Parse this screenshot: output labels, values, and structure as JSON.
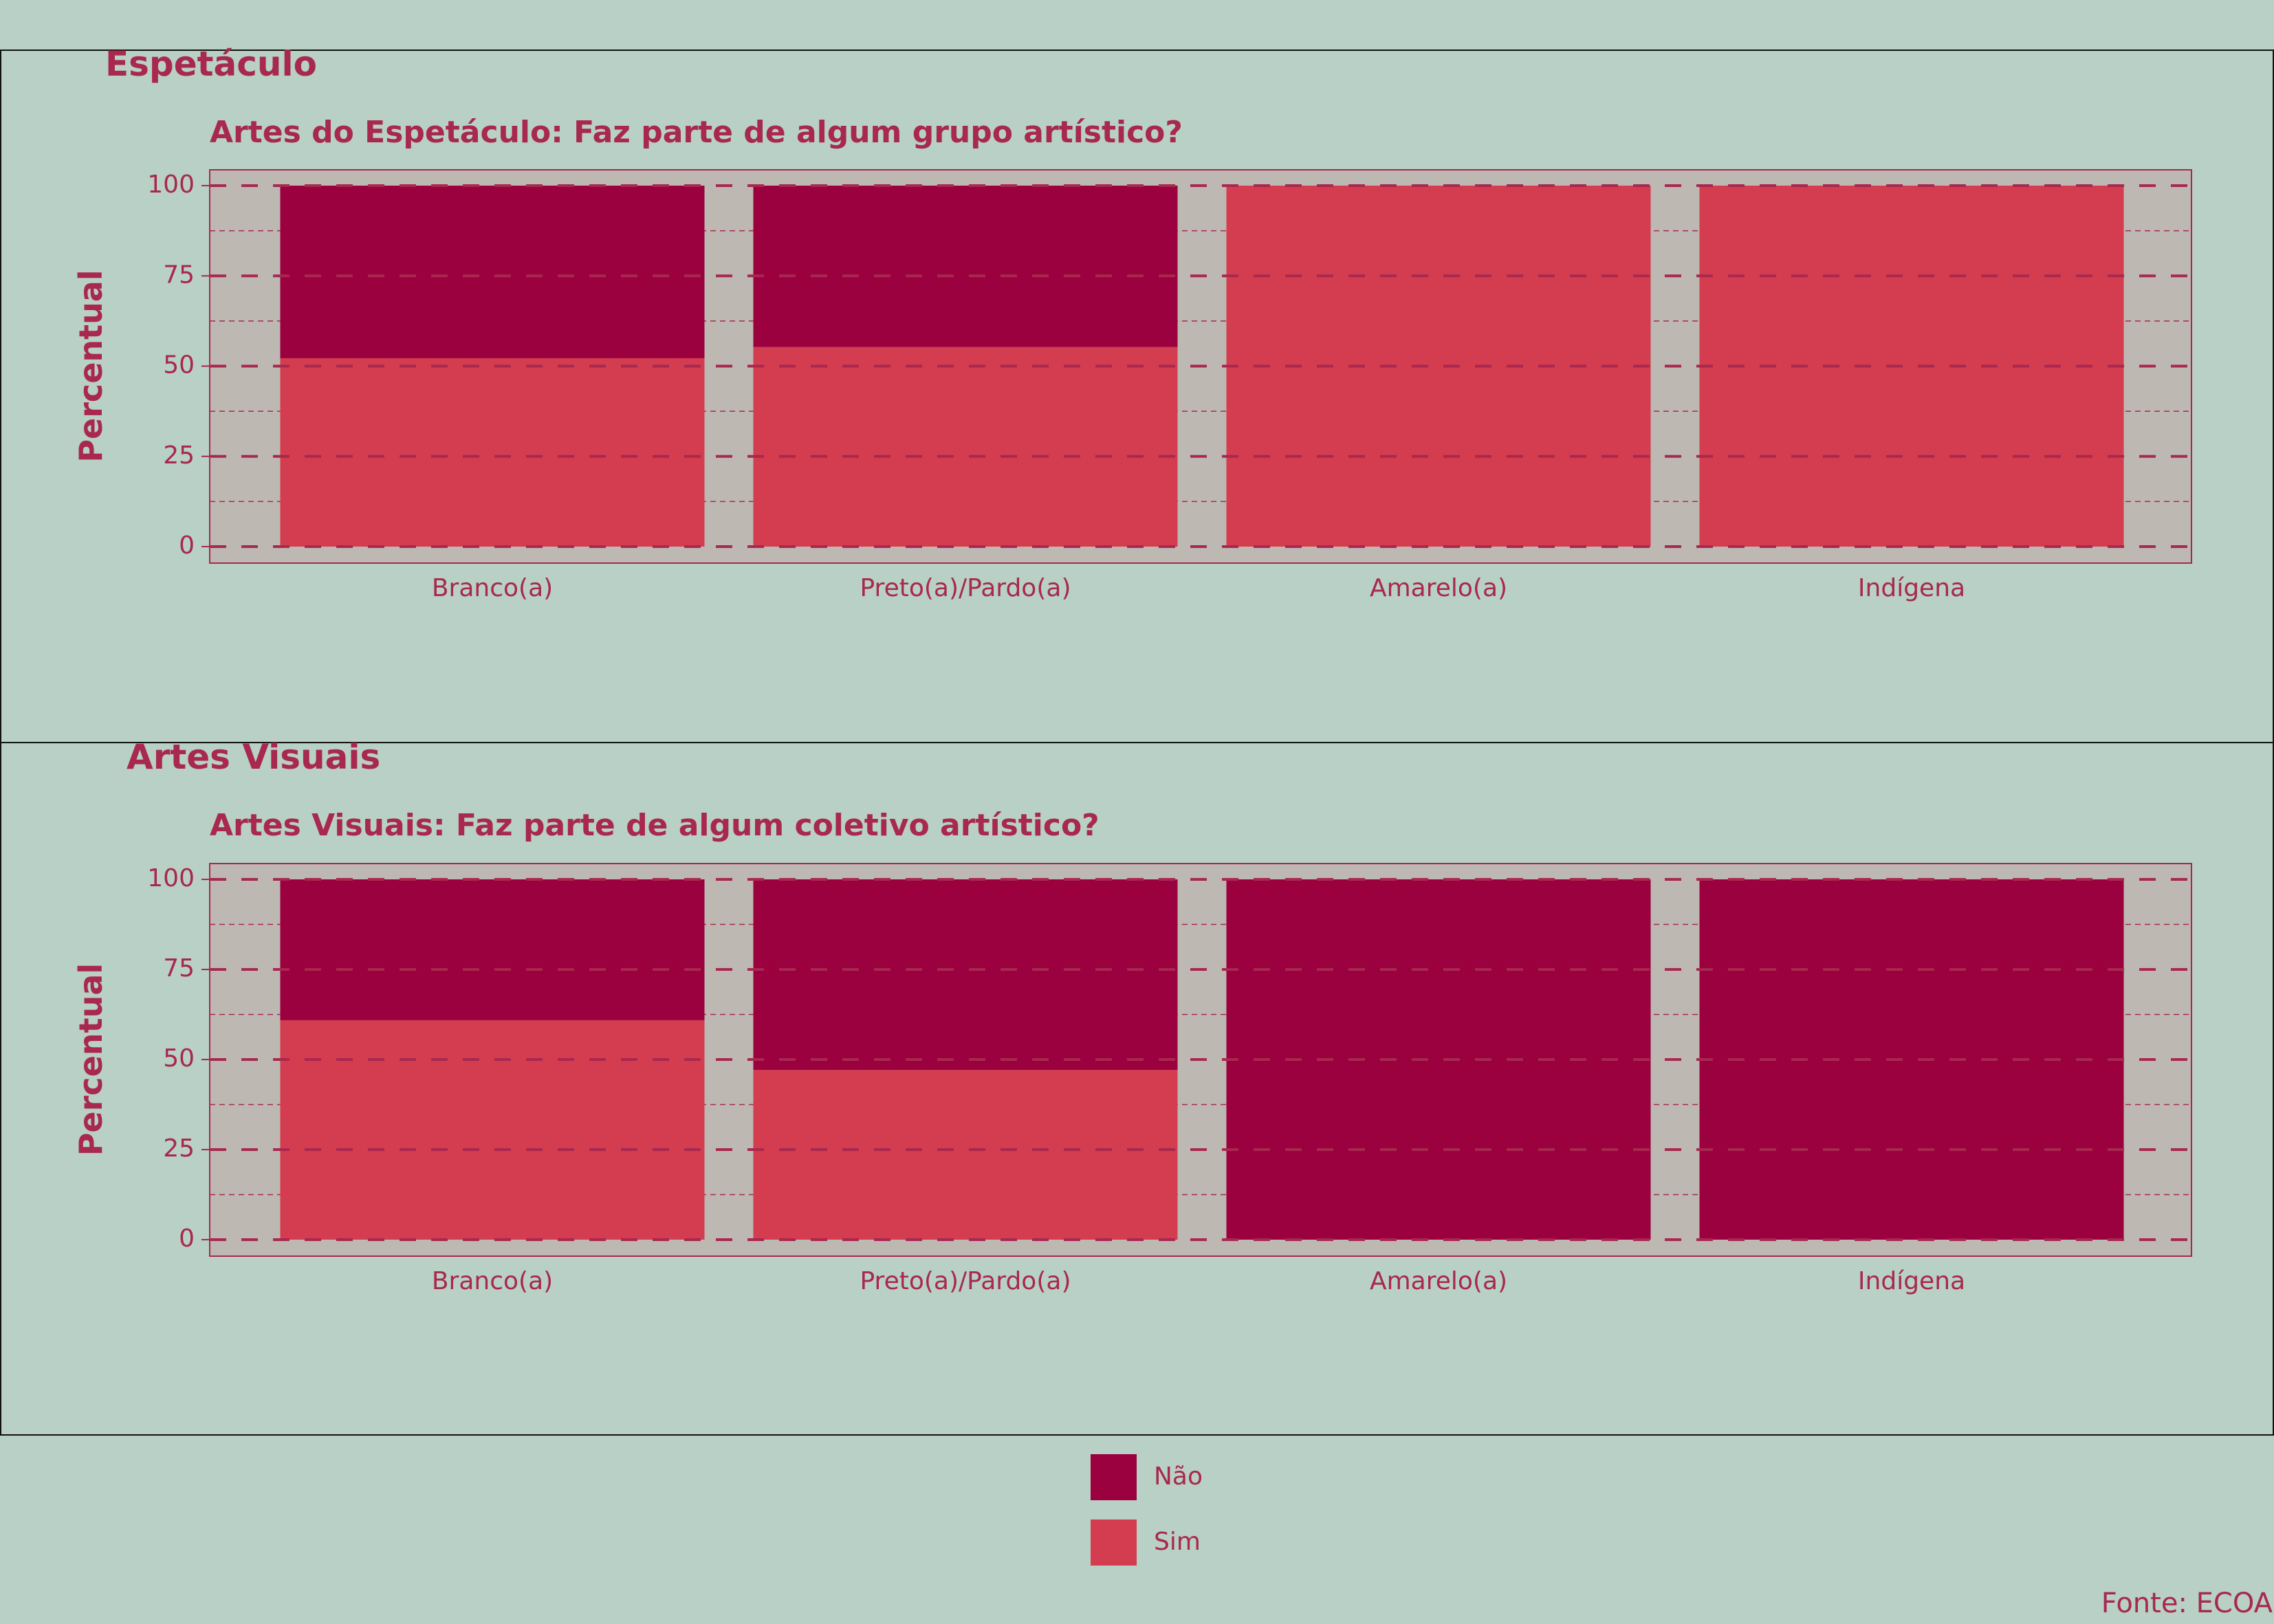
{
  "colors": {
    "background": "#b8d0c5",
    "panel_bg": "#bdb8b2",
    "text": "#a8284f",
    "nao": "#9b003f",
    "sim": "#d43d4f"
  },
  "source": "Fonte: ECOA",
  "legend": {
    "items": [
      {
        "label": "Não",
        "color": "#9b003f"
      },
      {
        "label": "Sim",
        "color": "#d43d4f"
      }
    ]
  },
  "chart_data": [
    {
      "type": "bar",
      "stacked": true,
      "section_title": "Espetáculo",
      "title": "Artes do Espetáculo: Faz parte de algum grupo artístico?",
      "xlabel": "",
      "ylabel": "Percentual",
      "ylim": [
        0,
        100
      ],
      "yticks": [
        "0",
        "25",
        "50",
        "75",
        "100"
      ],
      "grid": true,
      "categories": [
        "Branco(a)",
        "Preto(a)/Pardo(a)",
        "Amarelo(a)",
        "Indígena"
      ],
      "series": [
        {
          "name": "Sim",
          "values": [
            52.2,
            55.3,
            100,
            100
          ]
        },
        {
          "name": "Não",
          "values": [
            47.8,
            44.7,
            0,
            0
          ]
        }
      ]
    },
    {
      "type": "bar",
      "stacked": true,
      "section_title": "Artes Visuais",
      "title": "Artes Visuais: Faz parte de algum coletivo artístico?",
      "xlabel": "",
      "ylabel": "Percentual",
      "ylim": [
        0,
        100
      ],
      "yticks": [
        "0",
        "25",
        "50",
        "75",
        "100"
      ],
      "grid": true,
      "categories": [
        "Branco(a)",
        "Preto(a)/Pardo(a)",
        "Amarelo(a)",
        "Indígena"
      ],
      "series": [
        {
          "name": "Sim",
          "values": [
            60.9,
            47.1,
            0,
            0
          ]
        },
        {
          "name": "Não",
          "values": [
            39.1,
            52.9,
            100,
            100
          ]
        }
      ]
    }
  ]
}
